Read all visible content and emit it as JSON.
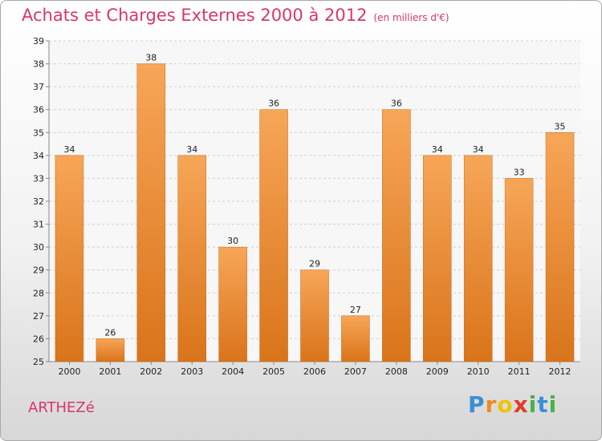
{
  "chart_data": {
    "type": "bar",
    "title": "Achats et Charges Externes 2000 à 2012",
    "subtitle": "(en milliers d'€)",
    "categories": [
      "2000",
      "2001",
      "2002",
      "2003",
      "2004",
      "2005",
      "2006",
      "2007",
      "2008",
      "2009",
      "2010",
      "2011",
      "2012"
    ],
    "values": [
      34,
      26,
      38,
      34,
      30,
      36,
      29,
      27,
      36,
      34,
      34,
      33,
      35
    ],
    "ylim": [
      25,
      39
    ],
    "yticks": [
      25,
      26,
      27,
      28,
      29,
      30,
      31,
      32,
      33,
      34,
      35,
      36,
      37,
      38,
      39
    ],
    "grid": true,
    "bar_color": "#f0892e"
  },
  "commune": "ARTHEZé",
  "logo": {
    "letters": [
      "P",
      "r",
      "o",
      "x",
      "i",
      "t",
      "i"
    ],
    "colors": [
      "#3a8fd6",
      "#f08a24",
      "#f2c200",
      "#e43a2b",
      "#49b04a",
      "#3a8fd6",
      "#49b04a"
    ]
  }
}
